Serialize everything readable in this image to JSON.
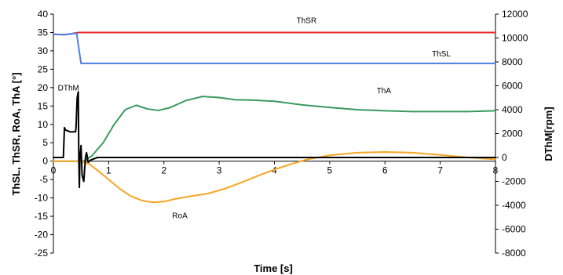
{
  "chart_data": {
    "type": "line",
    "xlabel": "Time [s]",
    "ylabel_left": "ThSL, ThSR, RoA, ThA [°]",
    "ylabel_right": "DThM[rpm]",
    "xlim": [
      0,
      8
    ],
    "ylim_left": [
      -25,
      40
    ],
    "ylim_right": [
      -8000,
      12000
    ],
    "x_ticks": [
      0,
      1,
      2,
      3,
      4,
      5,
      6,
      7,
      8
    ],
    "y_left_ticks": [
      40,
      35,
      30,
      25,
      20,
      15,
      10,
      5,
      0,
      -5,
      -10,
      -15,
      -20,
      -25
    ],
    "y_right_ticks": [
      12000,
      10000,
      8000,
      6000,
      4000,
      2000,
      0,
      -2000,
      -4000,
      -6000,
      -8000
    ],
    "grid": false,
    "series": [
      {
        "name": "ThSR",
        "axis": "left",
        "color": "#e8262a",
        "label_at": [
          4.4,
          37.5
        ],
        "points": [
          [
            0,
            34.5
          ],
          [
            0.2,
            34.4
          ],
          [
            0.3,
            34.6
          ],
          [
            0.45,
            35
          ],
          [
            8,
            35
          ]
        ]
      },
      {
        "name": "ThSL",
        "axis": "left",
        "color": "#4a7fe0",
        "label_at": [
          6.85,
          28.5
        ],
        "points": [
          [
            0,
            34.5
          ],
          [
            0.2,
            34.4
          ],
          [
            0.3,
            34.6
          ],
          [
            0.42,
            34.8
          ],
          [
            0.5,
            26.6
          ],
          [
            8,
            26.6
          ]
        ]
      },
      {
        "name": "ThA",
        "axis": "left",
        "color": "#3a9a60",
        "label_at": [
          5.85,
          18.5
        ],
        "points": [
          [
            0,
            0
          ],
          [
            0.55,
            0
          ],
          [
            0.7,
            1.5
          ],
          [
            0.9,
            5
          ],
          [
            1.1,
            10
          ],
          [
            1.3,
            14
          ],
          [
            1.5,
            15.2
          ],
          [
            1.7,
            14.2
          ],
          [
            1.9,
            13.8
          ],
          [
            2.1,
            14.5
          ],
          [
            2.4,
            16.5
          ],
          [
            2.7,
            17.6
          ],
          [
            3.0,
            17.3
          ],
          [
            3.3,
            16.7
          ],
          [
            3.6,
            16.6
          ],
          [
            4.0,
            16.3
          ],
          [
            4.5,
            15.3
          ],
          [
            5.0,
            14.6
          ],
          [
            5.5,
            14.0
          ],
          [
            6.0,
            13.7
          ],
          [
            6.5,
            13.5
          ],
          [
            7.0,
            13.5
          ],
          [
            7.5,
            13.5
          ],
          [
            8.0,
            13.7
          ]
        ]
      },
      {
        "name": "RoA",
        "axis": "left",
        "color": "#f5a623",
        "label_at": [
          2.15,
          -15.5
        ],
        "points": [
          [
            0,
            0
          ],
          [
            0.5,
            0
          ],
          [
            0.65,
            -0.8
          ],
          [
            0.8,
            -2.5
          ],
          [
            1.0,
            -5
          ],
          [
            1.2,
            -7.5
          ],
          [
            1.4,
            -9.5
          ],
          [
            1.6,
            -10.7
          ],
          [
            1.8,
            -11.2
          ],
          [
            2.0,
            -11
          ],
          [
            2.2,
            -10.3
          ],
          [
            2.5,
            -9.5
          ],
          [
            2.8,
            -8.8
          ],
          [
            3.1,
            -7.5
          ],
          [
            3.4,
            -5.8
          ],
          [
            3.7,
            -4
          ],
          [
            4.0,
            -2.3
          ],
          [
            4.3,
            -0.8
          ],
          [
            4.6,
            0.5
          ],
          [
            5.0,
            1.6
          ],
          [
            5.5,
            2.3
          ],
          [
            6.0,
            2.5
          ],
          [
            6.5,
            2.3
          ],
          [
            7.0,
            1.7
          ],
          [
            7.5,
            1.0
          ],
          [
            8.0,
            0.5
          ]
        ]
      },
      {
        "name": "DThM",
        "axis": "right",
        "color": "#000000",
        "label_at": [
          0.08,
          5600
        ],
        "points": [
          [
            0,
            0
          ],
          [
            0.18,
            0
          ],
          [
            0.2,
            2500
          ],
          [
            0.22,
            2300
          ],
          [
            0.3,
            2150
          ],
          [
            0.4,
            2150
          ],
          [
            0.41,
            2500
          ],
          [
            0.43,
            5000
          ],
          [
            0.45,
            5500
          ],
          [
            0.46,
            0
          ],
          [
            0.47,
            -2500
          ],
          [
            0.48,
            0
          ],
          [
            0.5,
            1000
          ],
          [
            0.52,
            -1500
          ],
          [
            0.55,
            -2000
          ],
          [
            0.58,
            0
          ],
          [
            0.6,
            400
          ],
          [
            0.63,
            -400
          ],
          [
            0.68,
            -200
          ],
          [
            0.8,
            0
          ],
          [
            8,
            0
          ]
        ]
      }
    ]
  }
}
